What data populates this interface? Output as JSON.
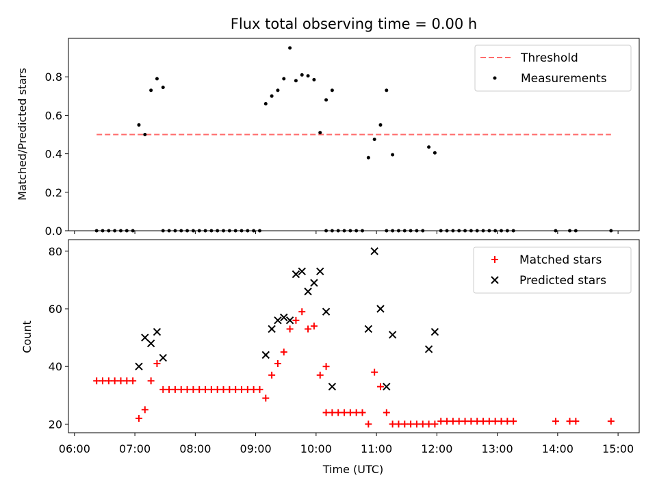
{
  "chart_data": [
    {
      "type": "scatter",
      "title": "Flux total observing time = 0.00 h",
      "xlabel": "",
      "ylabel": "Matched/Predicted stars",
      "ylim": [
        0,
        1.0
      ],
      "yticks": [
        "0.0",
        "0.2",
        "0.4",
        "0.6",
        "0.8"
      ],
      "xlim_hours": [
        5.9,
        15.35
      ],
      "legend": {
        "placement": "top-right",
        "entries": [
          "Threshold",
          "Measurements"
        ]
      },
      "threshold": {
        "name": "Threshold",
        "y": 0.5,
        "x_range": [
          "06:22",
          "14:53"
        ],
        "color": "#ff6b6b"
      },
      "series": [
        {
          "name": "Measurements",
          "color": "#000000",
          "points": [
            [
              "06:22",
              0
            ],
            [
              "06:28",
              0
            ],
            [
              "06:34",
              0
            ],
            [
              "06:40",
              0
            ],
            [
              "06:46",
              0
            ],
            [
              "06:52",
              0
            ],
            [
              "06:58",
              0
            ],
            [
              "07:04",
              0.55
            ],
            [
              "07:10",
              0.5
            ],
            [
              "07:16",
              0.73
            ],
            [
              "07:22",
              0.79
            ],
            [
              "07:28",
              0.745
            ],
            [
              "07:28",
              0
            ],
            [
              "07:34",
              0
            ],
            [
              "07:40",
              0
            ],
            [
              "07:46",
              0
            ],
            [
              "07:52",
              0
            ],
            [
              "07:58",
              0
            ],
            [
              "08:04",
              0
            ],
            [
              "08:10",
              0
            ],
            [
              "08:16",
              0
            ],
            [
              "08:22",
              0
            ],
            [
              "08:28",
              0
            ],
            [
              "08:34",
              0
            ],
            [
              "08:40",
              0
            ],
            [
              "08:46",
              0
            ],
            [
              "08:52",
              0
            ],
            [
              "08:58",
              0
            ],
            [
              "09:04",
              0
            ],
            [
              "09:10",
              0.66
            ],
            [
              "09:16",
              0.7
            ],
            [
              "09:22",
              0.73
            ],
            [
              "09:28",
              0.79
            ],
            [
              "09:34",
              0.95
            ],
            [
              "09:40",
              0.78
            ],
            [
              "09:46",
              0.81
            ],
            [
              "09:52",
              0.805
            ],
            [
              "09:58",
              0.785
            ],
            [
              "10:04",
              0.51
            ],
            [
              "10:10",
              0.68
            ],
            [
              "10:16",
              0.73
            ],
            [
              "10:10",
              0
            ],
            [
              "10:16",
              0
            ],
            [
              "10:22",
              0
            ],
            [
              "10:28",
              0
            ],
            [
              "10:34",
              0
            ],
            [
              "10:40",
              0
            ],
            [
              "10:46",
              0
            ],
            [
              "10:52",
              0.38
            ],
            [
              "10:58",
              0.475
            ],
            [
              "11:04",
              0.55
            ],
            [
              "11:10",
              0.73
            ],
            [
              "11:16",
              0.395
            ],
            [
              "11:10",
              0
            ],
            [
              "11:16",
              0
            ],
            [
              "11:22",
              0
            ],
            [
              "11:28",
              0
            ],
            [
              "11:34",
              0
            ],
            [
              "11:40",
              0
            ],
            [
              "11:46",
              0
            ],
            [
              "11:52",
              0.435
            ],
            [
              "11:58",
              0.405
            ],
            [
              "12:04",
              0
            ],
            [
              "12:10",
              0
            ],
            [
              "12:16",
              0
            ],
            [
              "12:22",
              0
            ],
            [
              "12:28",
              0
            ],
            [
              "12:34",
              0
            ],
            [
              "12:40",
              0
            ],
            [
              "12:46",
              0
            ],
            [
              "12:52",
              0
            ],
            [
              "12:58",
              0
            ],
            [
              "13:04",
              0
            ],
            [
              "13:10",
              0
            ],
            [
              "13:16",
              0
            ],
            [
              "13:58",
              0
            ],
            [
              "14:12",
              0
            ],
            [
              "14:18",
              0
            ],
            [
              "14:53",
              0
            ]
          ]
        }
      ]
    },
    {
      "type": "scatter",
      "title": "",
      "xlabel": "Time (UTC)",
      "ylabel": "Count",
      "ylim": [
        17,
        84
      ],
      "yticks": [
        "20",
        "40",
        "60",
        "80"
      ],
      "xticks": [
        "06:00",
        "07:00",
        "08:00",
        "09:00",
        "10:00",
        "11:00",
        "12:00",
        "13:00",
        "14:00",
        "15:00"
      ],
      "xlim_hours": [
        5.9,
        15.35
      ],
      "legend": {
        "placement": "top-right",
        "entries": [
          "Matched stars",
          "Predicted stars"
        ]
      },
      "series": [
        {
          "name": "Matched stars",
          "color": "#ff0000",
          "marker": "plus",
          "points": [
            [
              "06:22",
              35
            ],
            [
              "06:28",
              35
            ],
            [
              "06:34",
              35
            ],
            [
              "06:40",
              35
            ],
            [
              "06:46",
              35
            ],
            [
              "06:52",
              35
            ],
            [
              "06:58",
              35
            ],
            [
              "07:04",
              22
            ],
            [
              "07:10",
              25
            ],
            [
              "07:16",
              35
            ],
            [
              "07:22",
              41
            ],
            [
              "07:28",
              32
            ],
            [
              "07:34",
              32
            ],
            [
              "07:40",
              32
            ],
            [
              "07:46",
              32
            ],
            [
              "07:52",
              32
            ],
            [
              "07:58",
              32
            ],
            [
              "08:04",
              32
            ],
            [
              "08:10",
              32
            ],
            [
              "08:16",
              32
            ],
            [
              "08:22",
              32
            ],
            [
              "08:28",
              32
            ],
            [
              "08:34",
              32
            ],
            [
              "08:40",
              32
            ],
            [
              "08:46",
              32
            ],
            [
              "08:52",
              32
            ],
            [
              "08:58",
              32
            ],
            [
              "09:04",
              32
            ],
            [
              "09:10",
              29
            ],
            [
              "09:16",
              37
            ],
            [
              "09:22",
              41
            ],
            [
              "09:28",
              45
            ],
            [
              "09:34",
              53
            ],
            [
              "09:40",
              56
            ],
            [
              "09:46",
              59
            ],
            [
              "09:52",
              53
            ],
            [
              "09:58",
              54
            ],
            [
              "10:04",
              37
            ],
            [
              "10:10",
              40
            ],
            [
              "10:10",
              24
            ],
            [
              "10:16",
              24
            ],
            [
              "10:22",
              24
            ],
            [
              "10:28",
              24
            ],
            [
              "10:34",
              24
            ],
            [
              "10:40",
              24
            ],
            [
              "10:46",
              24
            ],
            [
              "10:52",
              20
            ],
            [
              "10:58",
              38
            ],
            [
              "11:04",
              33
            ],
            [
              "11:10",
              24
            ],
            [
              "11:16",
              20
            ],
            [
              "11:22",
              20
            ],
            [
              "11:28",
              20
            ],
            [
              "11:34",
              20
            ],
            [
              "11:40",
              20
            ],
            [
              "11:46",
              20
            ],
            [
              "11:52",
              20
            ],
            [
              "11:58",
              20
            ],
            [
              "12:04",
              21
            ],
            [
              "12:10",
              21
            ],
            [
              "12:16",
              21
            ],
            [
              "12:22",
              21
            ],
            [
              "12:28",
              21
            ],
            [
              "12:34",
              21
            ],
            [
              "12:40",
              21
            ],
            [
              "12:46",
              21
            ],
            [
              "12:52",
              21
            ],
            [
              "12:58",
              21
            ],
            [
              "13:04",
              21
            ],
            [
              "13:10",
              21
            ],
            [
              "13:16",
              21
            ],
            [
              "13:58",
              21
            ],
            [
              "14:12",
              21
            ],
            [
              "14:18",
              21
            ],
            [
              "14:53",
              21
            ]
          ]
        },
        {
          "name": "Predicted stars",
          "color": "#000000",
          "marker": "x",
          "points": [
            [
              "07:04",
              40
            ],
            [
              "07:10",
              50
            ],
            [
              "07:16",
              48
            ],
            [
              "07:22",
              52
            ],
            [
              "07:28",
              43
            ],
            [
              "09:10",
              44
            ],
            [
              "09:16",
              53
            ],
            [
              "09:22",
              56
            ],
            [
              "09:28",
              57
            ],
            [
              "09:34",
              56
            ],
            [
              "09:40",
              72
            ],
            [
              "09:46",
              73
            ],
            [
              "09:52",
              66
            ],
            [
              "09:58",
              69
            ],
            [
              "10:04",
              73
            ],
            [
              "10:10",
              59
            ],
            [
              "10:16",
              33
            ],
            [
              "10:52",
              53
            ],
            [
              "10:58",
              80
            ],
            [
              "11:04",
              60
            ],
            [
              "11:10",
              33
            ],
            [
              "11:16",
              51
            ],
            [
              "11:52",
              46
            ],
            [
              "11:58",
              52
            ]
          ]
        }
      ]
    }
  ]
}
